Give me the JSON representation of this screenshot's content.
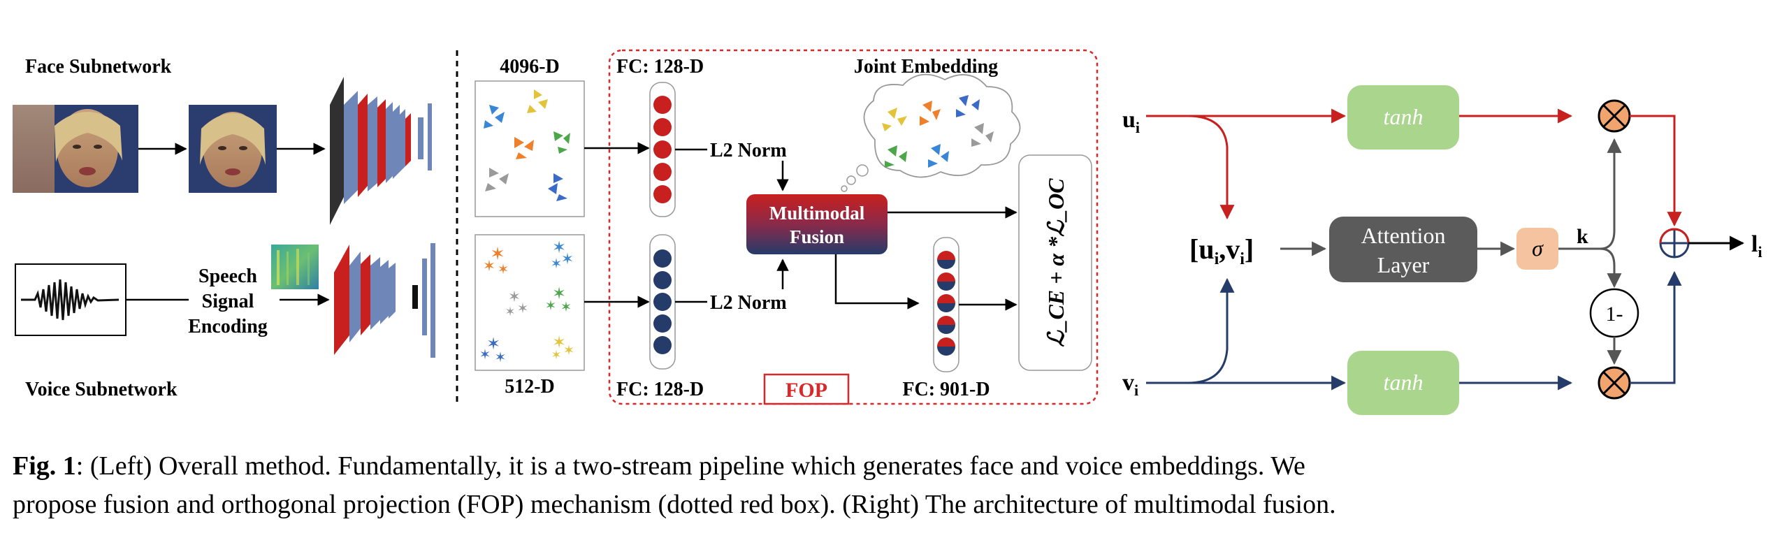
{
  "left": {
    "face_subnetwork": "Face Subnetwork",
    "voice_subnetwork": "Voice Subnetwork",
    "speech_encoding": [
      "Speech",
      "Signal",
      "Encoding"
    ],
    "dim_face": "4096-D",
    "dim_voice": "512-D"
  },
  "fop": {
    "fc_top": "FC: 128-D",
    "fc_bottom": "FC: 128-D",
    "l2_top": "L2 Norm",
    "l2_bottom": "L2 Norm",
    "fusion": [
      "Multimodal",
      "Fusion"
    ],
    "joint_embedding": "Joint Embedding",
    "fc_fused": "FC: 901-D",
    "badge": "FOP",
    "loss": "ℒ_CE + α *ℒ_OC"
  },
  "right": {
    "u_i": "u_i",
    "v_i": "v_i",
    "concat": "[u_i, v_i]",
    "tanh_top": "tanh",
    "tanh_bottom": "tanh",
    "attention": [
      "Attention",
      "Layer"
    ],
    "sigma": "σ",
    "k": "k",
    "one_minus": "1-",
    "output": "l_i"
  },
  "caption": {
    "label": "Fig. 1",
    "line1": ": (Left) Overall method.  Fundamentally, it is a two-stream pipeline which generates face and voice embeddings.  We",
    "line2": "propose fusion and orthogonal projection (FOP) mechanism (dotted red box). (Right) The architecture of multimodal fusion."
  },
  "colors": {
    "red": "#c8201e",
    "navy": "#253b69",
    "tanh_green": "#a9d58c",
    "attention_gray": "#5b5b5b",
    "sigma_peach": "#f6c3a0",
    "multiply_fill": "#f2a46e"
  }
}
